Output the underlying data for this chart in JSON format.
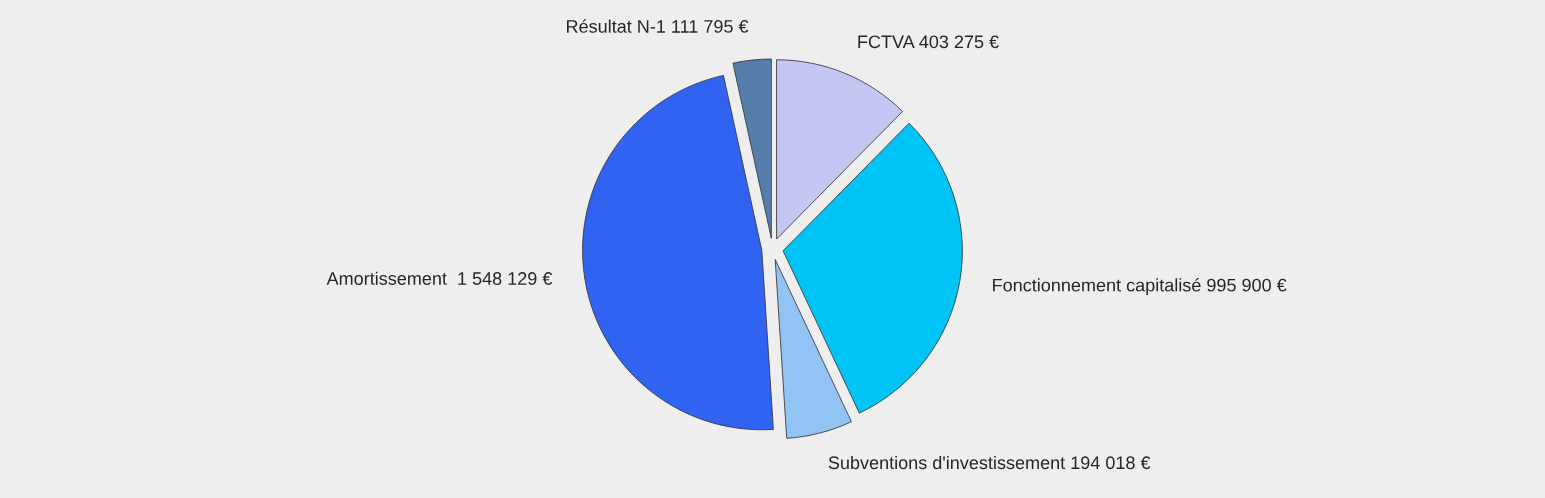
{
  "chart_data": {
    "type": "pie",
    "categories": [
      "FCTVA",
      "Fonctionnement capitalisé",
      "Subventions d'investissement",
      "Amortissement ",
      "Résultat N-1"
    ],
    "values": [
      403275,
      995900,
      194018,
      1548129,
      111795
    ],
    "value_labels": [
      "403 275 €",
      "995 900 €",
      "194 018 €",
      "1 548 129 €",
      "111 795 €"
    ],
    "colors": [
      "#c4c6f4",
      "#00c4f5",
      "#91c3f5",
      "#3163f3",
      "#557faa"
    ],
    "legend": false
  }
}
